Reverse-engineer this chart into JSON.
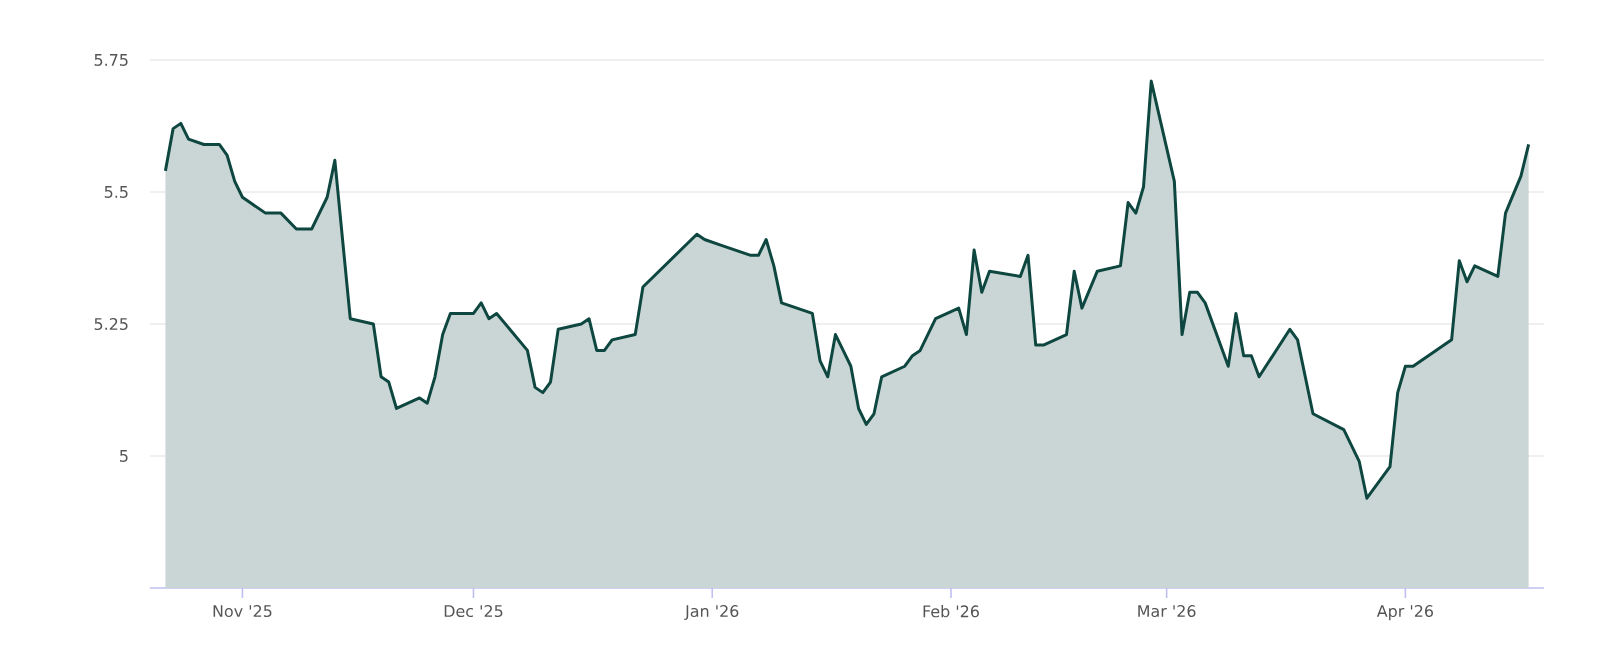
{
  "chart_data": {
    "type": "area",
    "color": "#0e4640",
    "x": [
      "2025-10-22",
      "2025-10-23",
      "2025-10-24",
      "2025-10-25",
      "2025-10-27",
      "2025-10-29",
      "2025-10-30",
      "2025-10-31",
      "2025-11-01",
      "2025-11-04",
      "2025-11-06",
      "2025-11-08",
      "2025-11-10",
      "2025-11-12",
      "2025-11-13",
      "2025-11-15",
      "2025-11-18",
      "2025-11-19",
      "2025-11-20",
      "2025-11-21",
      "2025-11-24",
      "2025-11-25",
      "2025-11-26",
      "2025-11-27",
      "2025-11-28",
      "2025-12-01",
      "2025-12-02",
      "2025-12-03",
      "2025-12-04",
      "2025-12-08",
      "2025-12-09",
      "2025-12-10",
      "2025-12-11",
      "2025-12-12",
      "2025-12-15",
      "2025-12-16",
      "2025-12-17",
      "2025-12-18",
      "2025-12-19",
      "2025-12-22",
      "2025-12-23",
      "2025-12-30",
      "2025-12-31",
      "2026-01-02",
      "2026-01-06",
      "2026-01-07",
      "2026-01-08",
      "2026-01-09",
      "2026-01-10",
      "2026-01-14",
      "2026-01-15",
      "2026-01-16",
      "2026-01-17",
      "2026-01-18",
      "2026-01-19",
      "2026-01-20",
      "2026-01-21",
      "2026-01-22",
      "2026-01-23",
      "2026-01-26",
      "2026-01-27",
      "2026-01-28",
      "2026-01-30",
      "2026-02-02",
      "2026-02-03",
      "2026-02-04",
      "2026-02-05",
      "2026-02-06",
      "2026-02-10",
      "2026-02-11",
      "2026-02-12",
      "2026-02-13",
      "2026-02-16",
      "2026-02-17",
      "2026-02-18",
      "2026-02-20",
      "2026-02-23",
      "2026-02-24",
      "2026-02-25",
      "2026-02-26",
      "2026-02-27",
      "2026-03-02",
      "2026-03-03",
      "2026-03-04",
      "2026-03-05",
      "2026-03-06",
      "2026-03-09",
      "2026-03-10",
      "2026-03-11",
      "2026-03-12",
      "2026-03-13",
      "2026-03-17",
      "2026-03-18",
      "2026-03-20",
      "2026-03-24",
      "2026-03-26",
      "2026-03-27",
      "2026-03-30",
      "2026-03-31",
      "2026-04-01",
      "2026-04-02",
      "2026-04-07",
      "2026-04-08",
      "2026-04-09",
      "2026-04-10",
      "2026-04-13",
      "2026-04-14",
      "2026-04-16",
      "2026-04-17"
    ],
    "values": [
      5.54,
      5.62,
      5.63,
      5.6,
      5.59,
      5.59,
      5.57,
      5.52,
      5.49,
      5.46,
      5.46,
      5.43,
      5.43,
      5.49,
      5.56,
      5.26,
      5.25,
      5.15,
      5.14,
      5.09,
      5.11,
      5.1,
      5.15,
      5.23,
      5.27,
      5.27,
      5.29,
      5.26,
      5.27,
      5.2,
      5.13,
      5.12,
      5.14,
      5.24,
      5.25,
      5.26,
      5.2,
      5.2,
      5.22,
      5.23,
      5.32,
      5.42,
      5.41,
      5.4,
      5.38,
      5.38,
      5.41,
      5.36,
      5.29,
      5.27,
      5.18,
      5.15,
      5.23,
      5.2,
      5.17,
      5.09,
      5.06,
      5.08,
      5.15,
      5.17,
      5.19,
      5.2,
      5.26,
      5.28,
      5.23,
      5.39,
      5.31,
      5.35,
      5.34,
      5.38,
      5.21,
      5.21,
      5.23,
      5.35,
      5.28,
      5.35,
      5.36,
      5.48,
      5.46,
      5.51,
      5.71,
      5.52,
      5.23,
      5.31,
      5.31,
      5.29,
      5.17,
      5.27,
      5.19,
      5.19,
      5.15,
      5.24,
      5.22,
      5.08,
      5.05,
      4.99,
      4.92,
      4.98,
      5.12,
      5.17,
      5.17,
      5.22,
      5.37,
      5.33,
      5.36,
      5.34,
      5.46,
      5.53,
      5.59
    ],
    "xlim": [
      "2025-10-20",
      "2026-04-19"
    ],
    "xticks": [
      {
        "value": "2025-11-01",
        "label": "Nov '25"
      },
      {
        "value": "2025-12-01",
        "label": "Dec '25"
      },
      {
        "value": "2026-01-01",
        "label": "Jan '26"
      },
      {
        "value": "2026-02-01",
        "label": "Feb '26"
      },
      {
        "value": "2026-03-01",
        "label": "Mar '26"
      },
      {
        "value": "2026-04-01",
        "label": "Apr '26"
      }
    ],
    "ylim": [
      4.75,
      5.75
    ],
    "yticks": [
      5,
      5.25,
      5.5,
      5.75
    ],
    "grid": "y"
  }
}
